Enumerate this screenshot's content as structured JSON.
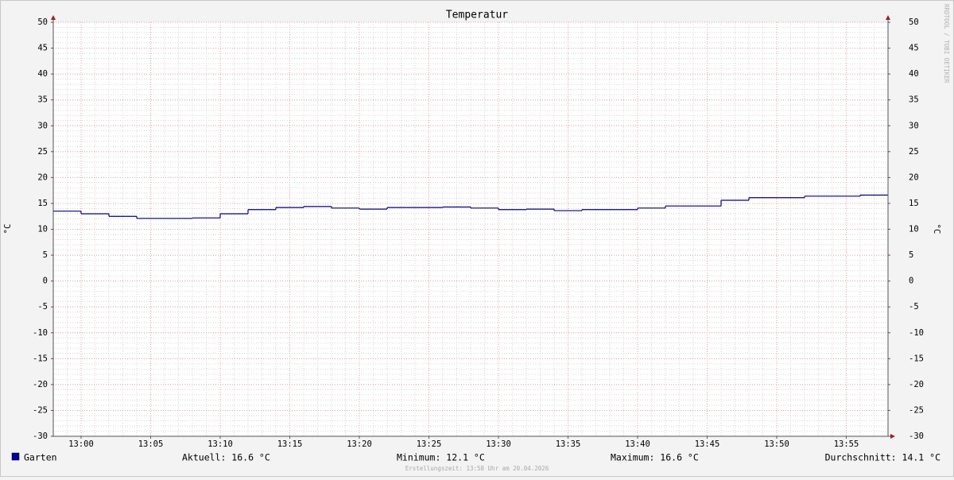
{
  "chart_data": {
    "type": "step",
    "title": "Temperatur",
    "ylabel": "°C",
    "y2label": "°C",
    "watermark": "RRDTOOL / TOBI OETIKER",
    "x": [
      "12:58",
      "13:00",
      "13:02",
      "13:04",
      "13:06",
      "13:08",
      "13:10",
      "13:12",
      "13:14",
      "13:16",
      "13:18",
      "13:20",
      "13:22",
      "13:24",
      "13:26",
      "13:28",
      "13:30",
      "13:32",
      "13:34",
      "13:36",
      "13:38",
      "13:40",
      "13:42",
      "13:44",
      "13:46",
      "13:48",
      "13:50",
      "13:52",
      "13:54",
      "13:56"
    ],
    "series": [
      {
        "name": "Garten",
        "color": "#000080",
        "values": [
          13.5,
          13.0,
          12.5,
          12.1,
          12.1,
          12.2,
          13.0,
          13.8,
          14.2,
          14.4,
          14.1,
          13.9,
          14.2,
          14.2,
          14.3,
          14.1,
          13.8,
          13.9,
          13.6,
          13.8,
          13.8,
          14.1,
          14.5,
          14.5,
          15.6,
          16.1,
          16.1,
          16.4,
          16.4,
          16.6
        ]
      }
    ],
    "xlim": [
      "12:58",
      "13:58"
    ],
    "xticks": [
      "13:00",
      "13:05",
      "13:10",
      "13:15",
      "13:20",
      "13:25",
      "13:30",
      "13:35",
      "13:40",
      "13:45",
      "13:50",
      "13:55"
    ],
    "ylim": [
      -30,
      50
    ],
    "yticks": [
      -30,
      -25,
      -20,
      -15,
      -10,
      -5,
      0,
      5,
      10,
      15,
      20,
      25,
      30,
      35,
      40,
      45,
      50
    ],
    "grid": true,
    "minor_grid": true,
    "stats": [
      "Aktuell: 16.6 °C",
      "Minimum: 12.1 °C",
      "Maximum: 16.6 °C",
      "Durchschnitt: 14.1 °C"
    ],
    "footer": "Erstellungszeit: 13:58 Uhr am 20.04.2026"
  }
}
